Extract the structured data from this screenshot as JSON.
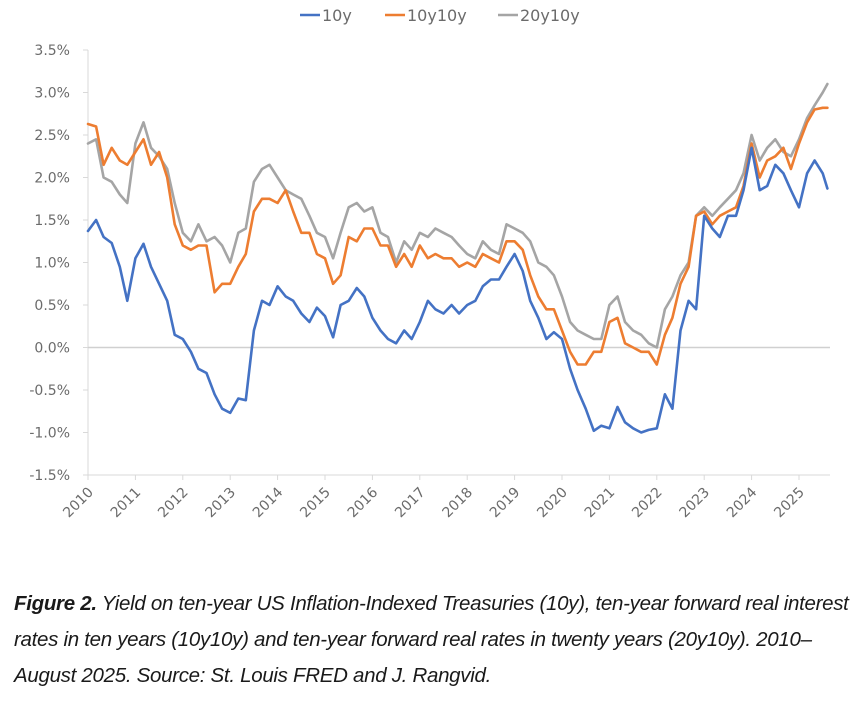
{
  "chart_data": {
    "type": "line",
    "title": "",
    "xlabel": "",
    "ylabel": "",
    "xlim": [
      2010,
      2025.65
    ],
    "ylim": [
      -1.5,
      3.5
    ],
    "y_ticks": [
      3.5,
      3.0,
      2.5,
      2.0,
      1.5,
      1.0,
      0.5,
      0.0,
      -0.5,
      -1.0,
      -1.5
    ],
    "y_tick_labels": [
      "3.5%",
      "3.0%",
      "2.5%",
      "2.0%",
      "1.5%",
      "1.0%",
      "0.5%",
      "0.0%",
      "-0.5%",
      "-1.0%",
      "-1.5%"
    ],
    "x_ticks": [
      2010,
      2011,
      2012,
      2013,
      2014,
      2015,
      2016,
      2017,
      2018,
      2019,
      2020,
      2021,
      2022,
      2023,
      2024,
      2025
    ],
    "x_tick_labels": [
      "2010",
      "2011",
      "2012",
      "2013",
      "2014",
      "2015",
      "2016",
      "2017",
      "2018",
      "2019",
      "2020",
      "2021",
      "2022",
      "2023",
      "2024",
      "2025"
    ],
    "grid": false,
    "zero_line": true,
    "legend": {
      "position": "top-center"
    },
    "x": [
      2010.0,
      2010.17,
      2010.33,
      2010.5,
      2010.67,
      2010.83,
      2011.0,
      2011.17,
      2011.33,
      2011.5,
      2011.67,
      2011.83,
      2012.0,
      2012.17,
      2012.33,
      2012.5,
      2012.67,
      2012.83,
      2013.0,
      2013.17,
      2013.33,
      2013.5,
      2013.67,
      2013.83,
      2014.0,
      2014.17,
      2014.33,
      2014.5,
      2014.67,
      2014.83,
      2015.0,
      2015.17,
      2015.33,
      2015.5,
      2015.67,
      2015.83,
      2016.0,
      2016.17,
      2016.33,
      2016.5,
      2016.67,
      2016.83,
      2017.0,
      2017.17,
      2017.33,
      2017.5,
      2017.67,
      2017.83,
      2018.0,
      2018.17,
      2018.33,
      2018.5,
      2018.67,
      2018.83,
      2019.0,
      2019.17,
      2019.33,
      2019.5,
      2019.67,
      2019.83,
      2020.0,
      2020.17,
      2020.33,
      2020.5,
      2020.67,
      2020.83,
      2021.0,
      2021.17,
      2021.33,
      2021.5,
      2021.67,
      2021.83,
      2022.0,
      2022.17,
      2022.33,
      2022.5,
      2022.67,
      2022.83,
      2023.0,
      2023.17,
      2023.33,
      2023.5,
      2023.67,
      2023.83,
      2024.0,
      2024.17,
      2024.33,
      2024.5,
      2024.67,
      2024.83,
      2025.0,
      2025.17,
      2025.33,
      2025.5,
      2025.6
    ],
    "series": [
      {
        "name": "10y",
        "color": "#4472c4",
        "values": [
          1.37,
          1.5,
          1.3,
          1.23,
          0.95,
          0.55,
          1.05,
          1.22,
          0.95,
          0.75,
          0.55,
          0.15,
          0.1,
          -0.05,
          -0.25,
          -0.3,
          -0.55,
          -0.72,
          -0.77,
          -0.6,
          -0.62,
          0.2,
          0.55,
          0.5,
          0.72,
          0.6,
          0.55,
          0.4,
          0.3,
          0.47,
          0.37,
          0.12,
          0.5,
          0.55,
          0.7,
          0.6,
          0.35,
          0.2,
          0.1,
          0.05,
          0.2,
          0.1,
          0.3,
          0.55,
          0.45,
          0.4,
          0.5,
          0.4,
          0.5,
          0.55,
          0.72,
          0.8,
          0.8,
          0.95,
          1.1,
          0.9,
          0.55,
          0.35,
          0.1,
          0.18,
          0.1,
          -0.25,
          -0.5,
          -0.72,
          -0.98,
          -0.92,
          -0.95,
          -0.7,
          -0.88,
          -0.95,
          -1.0,
          -0.97,
          -0.95,
          -0.55,
          -0.72,
          0.2,
          0.55,
          0.45,
          1.55,
          1.4,
          1.3,
          1.55,
          1.55,
          1.85,
          2.35,
          1.85,
          1.9,
          2.15,
          2.05,
          1.85,
          1.65,
          2.05,
          2.2,
          2.05,
          1.87
        ]
      },
      {
        "name": "10y10y",
        "color": "#ed7d31",
        "values": [
          2.63,
          2.6,
          2.15,
          2.35,
          2.2,
          2.15,
          2.3,
          2.45,
          2.15,
          2.3,
          2.0,
          1.45,
          1.2,
          1.15,
          1.2,
          1.2,
          0.65,
          0.75,
          0.75,
          0.95,
          1.1,
          1.6,
          1.75,
          1.75,
          1.7,
          1.85,
          1.6,
          1.35,
          1.35,
          1.1,
          1.05,
          0.75,
          0.85,
          1.3,
          1.25,
          1.4,
          1.4,
          1.2,
          1.2,
          0.95,
          1.1,
          0.95,
          1.2,
          1.05,
          1.1,
          1.05,
          1.05,
          0.95,
          1.0,
          0.95,
          1.1,
          1.05,
          1.0,
          1.25,
          1.25,
          1.15,
          0.85,
          0.6,
          0.45,
          0.45,
          0.2,
          -0.05,
          -0.2,
          -0.2,
          -0.05,
          -0.05,
          0.3,
          0.35,
          0.05,
          0.0,
          -0.05,
          -0.05,
          -0.2,
          0.15,
          0.35,
          0.75,
          0.95,
          1.55,
          1.6,
          1.45,
          1.55,
          1.6,
          1.65,
          1.9,
          2.4,
          2.0,
          2.2,
          2.25,
          2.35,
          2.1,
          2.4,
          2.65,
          2.8,
          2.82,
          2.82
        ]
      },
      {
        "name": "20y10y",
        "color": "#a5a5a5",
        "values": [
          2.4,
          2.45,
          2.0,
          1.95,
          1.8,
          1.7,
          2.4,
          2.65,
          2.35,
          2.25,
          2.1,
          1.7,
          1.35,
          1.25,
          1.45,
          1.25,
          1.3,
          1.2,
          1.0,
          1.35,
          1.4,
          1.95,
          2.1,
          2.15,
          2.0,
          1.85,
          1.8,
          1.75,
          1.55,
          1.35,
          1.3,
          1.05,
          1.35,
          1.65,
          1.7,
          1.6,
          1.65,
          1.35,
          1.3,
          1.0,
          1.25,
          1.15,
          1.35,
          1.3,
          1.4,
          1.35,
          1.3,
          1.2,
          1.1,
          1.05,
          1.25,
          1.15,
          1.1,
          1.45,
          1.4,
          1.35,
          1.25,
          1.0,
          0.95,
          0.85,
          0.6,
          0.3,
          0.2,
          0.15,
          0.1,
          0.1,
          0.5,
          0.6,
          0.3,
          0.2,
          0.15,
          0.05,
          0.0,
          0.45,
          0.6,
          0.85,
          1.0,
          1.55,
          1.65,
          1.55,
          1.65,
          1.75,
          1.85,
          2.05,
          2.5,
          2.2,
          2.35,
          2.45,
          2.3,
          2.25,
          2.45,
          2.7,
          2.85,
          3.0,
          3.1
        ]
      }
    ]
  },
  "caption": {
    "label": "Figure 2.",
    "text": " Yield on ten-year US Inflation-Indexed Treasuries (10y), ten-year forward real interest rates in ten years (10y10y) and ten-year forward real rates in twenty years (20y10y). 2010–August 2025. Source: St. Louis FRED and J. Rangvid."
  }
}
